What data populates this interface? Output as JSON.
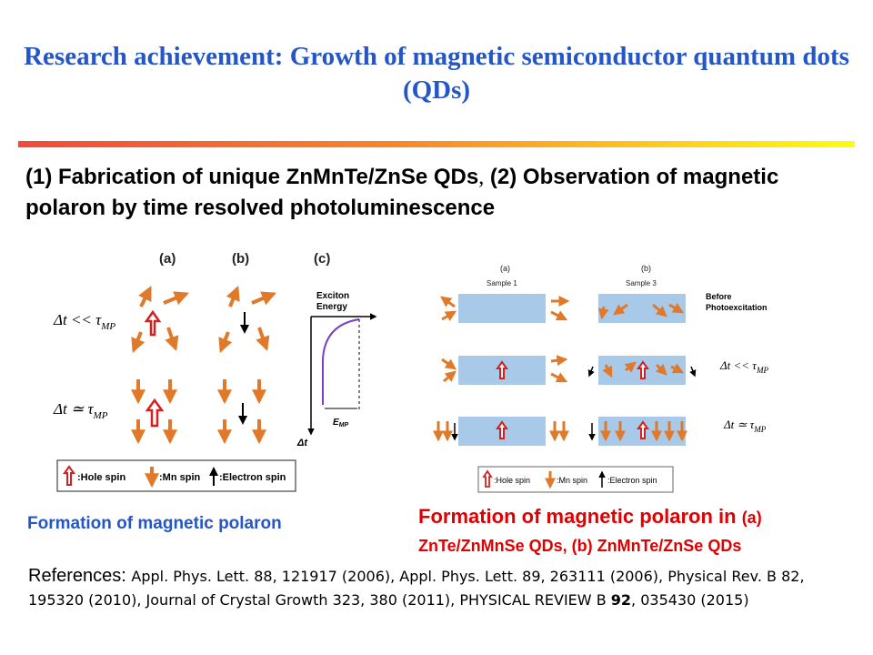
{
  "title": "Research achievement: Growth of magnetic semiconductor quantum dots (QDs)",
  "subtitle": {
    "part1": "(1) Fabrication of unique ZnMnTe/ZnSe QDs",
    "separator": ",",
    "part2": " (2) Observation of magnetic polaron by time resolved photoluminescence"
  },
  "figure_left": {
    "panel_a": "(a)",
    "panel_b": "(b)",
    "panel_c": "(c)",
    "row1_label": "Δt << τ",
    "row1_sub": "MP",
    "row2_label": "Δt ≃ τ",
    "row2_sub": "MP",
    "axis_y_label_line1": "Exciton",
    "axis_y_label_line2": "Energy",
    "axis_x_label": "Δt",
    "emp_label": "E",
    "emp_sub": "MP",
    "legend_hole": ":Hole spin",
    "legend_mn": ":Mn spin",
    "legend_electron": ":Electron spin"
  },
  "figure_right": {
    "panel_a": "(a)",
    "panel_a_sample": "Sample 1",
    "panel_b": "(b)",
    "panel_b_sample": "Sample 3",
    "before_line1": "Before",
    "before_line2": "Photoexcitation",
    "row2_label": "Δt << τ",
    "row2_sub": "MP",
    "row3_label": "Δt ≃ τ",
    "row3_sub": "MP",
    "legend_hole": ":Hole spin",
    "legend_mn": ":Mn spin",
    "legend_electron": ":Electron spin"
  },
  "caption_left": "Formation of magnetic polaron",
  "caption_right": {
    "line1_main": "Formation of magnetic polaron in ",
    "line1_small": "(a)",
    "line2": "ZnTe/ZnMnSe QDs,  (b) ZnMnTe/ZnSe QDs"
  },
  "references": {
    "lead": "References: ",
    "text1": "Appl. Phys. Lett. 88, 121917 (2006), Appl. Phys. Lett. 89, 263111 (2006), Physical Rev. B 82, 195320 (2010), Journal of Crystal Growth 323, 380 (2011), PHYSICAL REVIEW B ",
    "bold": "92",
    "text2": ", 035430 (2015)"
  },
  "colors": {
    "title_blue": "#2456c8",
    "caption_red": "#e00000",
    "mn_orange": "#e07a2a",
    "hole_red": "#d62020",
    "qd_blue": "#a9c9e8",
    "curve_purple": "#7a3ec8"
  }
}
